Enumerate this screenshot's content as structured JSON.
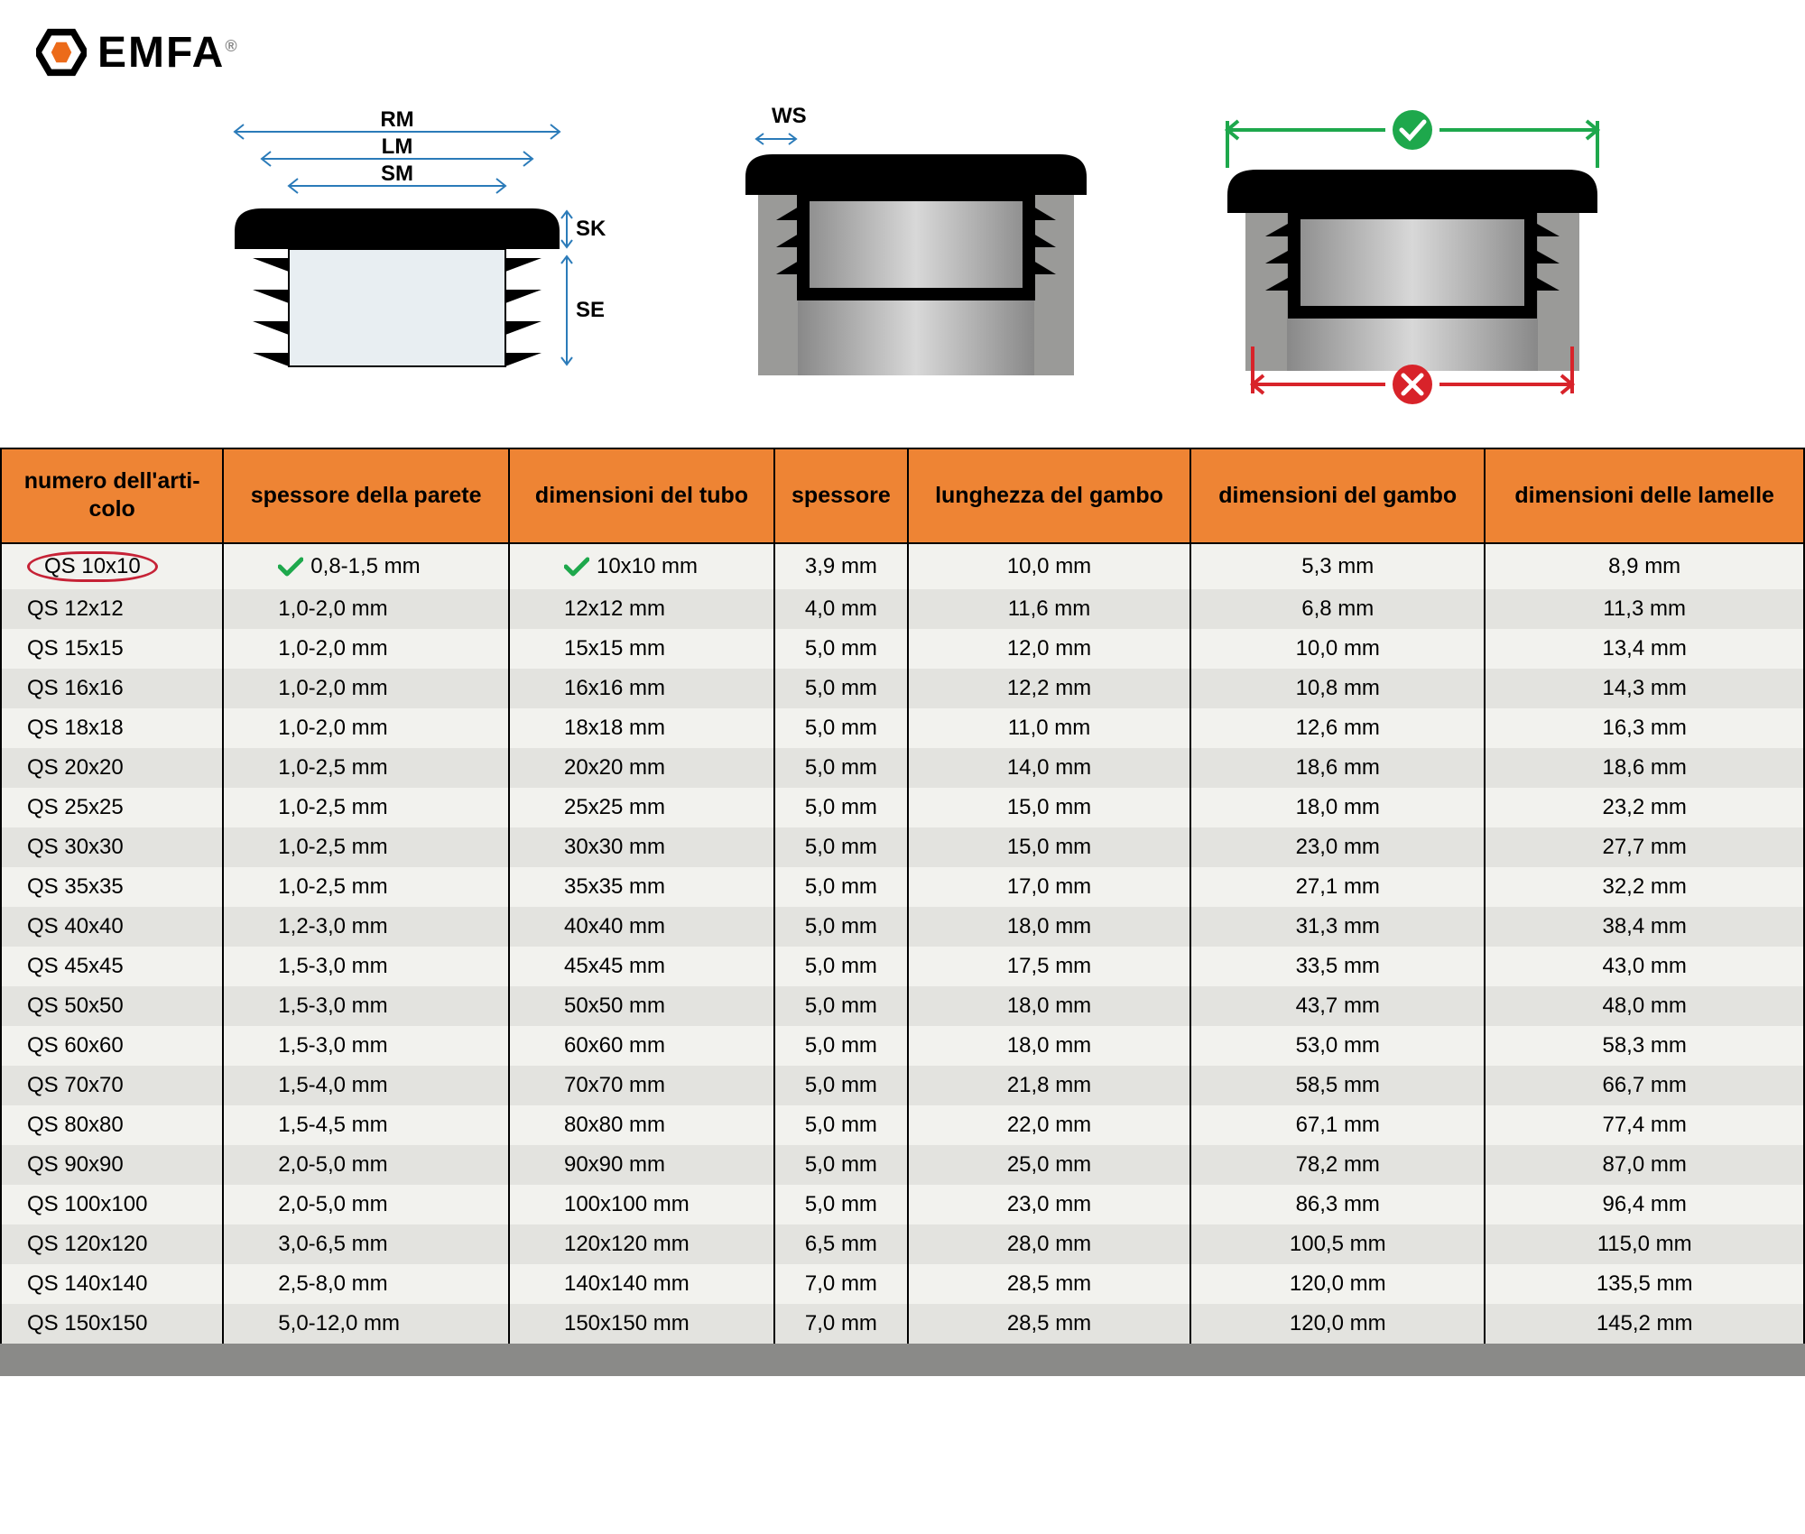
{
  "logo": {
    "text": "EMFA",
    "mark": "®",
    "icon_color": "#ec6b1a"
  },
  "diagram_labels": {
    "RM": "RM",
    "LM": "LM",
    "SM": "SM",
    "SK": "SK",
    "SE": "SE",
    "WS": "WS"
  },
  "table": {
    "header_bg": "#ee8434",
    "columns": [
      "numero dell'articolo",
      "spessore della parete",
      "dimensioni del tubo",
      "spessore",
      "lunghezza del gambo",
      "dimensioni del gambo",
      "dimensioni delle lamelle"
    ],
    "highlight_row_index": 0,
    "check_columns_row0": [
      1,
      2
    ],
    "rows": [
      [
        "QS 10x10",
        "0,8-1,5 mm",
        "10x10 mm",
        "3,9 mm",
        "10,0 mm",
        "5,3 mm",
        "8,9 mm"
      ],
      [
        "QS 12x12",
        "1,0-2,0 mm",
        "12x12 mm",
        "4,0 mm",
        "11,6 mm",
        "6,8 mm",
        "11,3 mm"
      ],
      [
        "QS 15x15",
        "1,0-2,0 mm",
        "15x15 mm",
        "5,0 mm",
        "12,0 mm",
        "10,0 mm",
        "13,4 mm"
      ],
      [
        "QS 16x16",
        "1,0-2,0 mm",
        "16x16 mm",
        "5,0 mm",
        "12,2 mm",
        "10,8 mm",
        "14,3 mm"
      ],
      [
        "QS 18x18",
        "1,0-2,0 mm",
        "18x18 mm",
        "5,0 mm",
        "11,0 mm",
        "12,6 mm",
        "16,3 mm"
      ],
      [
        "QS 20x20",
        "1,0-2,5 mm",
        "20x20 mm",
        "5,0 mm",
        "14,0 mm",
        "18,6 mm",
        "18,6 mm"
      ],
      [
        "QS 25x25",
        "1,0-2,5 mm",
        "25x25 mm",
        "5,0 mm",
        "15,0 mm",
        "18,0 mm",
        "23,2 mm"
      ],
      [
        "QS 30x30",
        "1,0-2,5 mm",
        "30x30 mm",
        "5,0 mm",
        "15,0 mm",
        "23,0 mm",
        "27,7 mm"
      ],
      [
        "QS 35x35",
        "1,0-2,5 mm",
        "35x35 mm",
        "5,0 mm",
        "17,0 mm",
        "27,1 mm",
        "32,2 mm"
      ],
      [
        "QS 40x40",
        "1,2-3,0 mm",
        "40x40 mm",
        "5,0 mm",
        "18,0 mm",
        "31,3 mm",
        "38,4 mm"
      ],
      [
        "QS 45x45",
        "1,5-3,0 mm",
        "45x45 mm",
        "5,0 mm",
        "17,5 mm",
        "33,5 mm",
        "43,0 mm"
      ],
      [
        "QS 50x50",
        "1,5-3,0 mm",
        "50x50 mm",
        "5,0 mm",
        "18,0 mm",
        "43,7 mm",
        "48,0 mm"
      ],
      [
        "QS 60x60",
        "1,5-3,0 mm",
        "60x60 mm",
        "5,0 mm",
        "18,0 mm",
        "53,0 mm",
        "58,3 mm"
      ],
      [
        "QS 70x70",
        "1,5-4,0 mm",
        "70x70 mm",
        "5,0 mm",
        "21,8 mm",
        "58,5 mm",
        "66,7 mm"
      ],
      [
        "QS 80x80",
        "1,5-4,5 mm",
        "80x80 mm",
        "5,0 mm",
        "22,0 mm",
        "67,1 mm",
        "77,4 mm"
      ],
      [
        "QS 90x90",
        "2,0-5,0 mm",
        "90x90 mm",
        "5,0 mm",
        "25,0 mm",
        "78,2 mm",
        "87,0 mm"
      ],
      [
        "QS 100x100",
        "2,0-5,0 mm",
        "100x100 mm",
        "5,0 mm",
        "23,0 mm",
        "86,3 mm",
        "96,4 mm"
      ],
      [
        "QS 120x120",
        "3,0-6,5 mm",
        "120x120 mm",
        "6,5 mm",
        "28,0 mm",
        "100,5 mm",
        "115,0 mm"
      ],
      [
        "QS 140x140",
        "2,5-8,0 mm",
        "140x140 mm",
        "7,0 mm",
        "28,5 mm",
        "120,0 mm",
        "135,5 mm"
      ],
      [
        "QS 150x150",
        "5,0-12,0 mm",
        "150x150 mm",
        "7,0 mm",
        "28,5 mm",
        "120,0 mm",
        "145,2 mm"
      ]
    ]
  },
  "colors": {
    "green": "#1ea84c",
    "red": "#d8232a",
    "blue": "#2b7bb9",
    "header_border": "#000000",
    "row_odd": "#f2f2ee",
    "row_even": "#e3e3df",
    "footer": "#8a8a88"
  }
}
